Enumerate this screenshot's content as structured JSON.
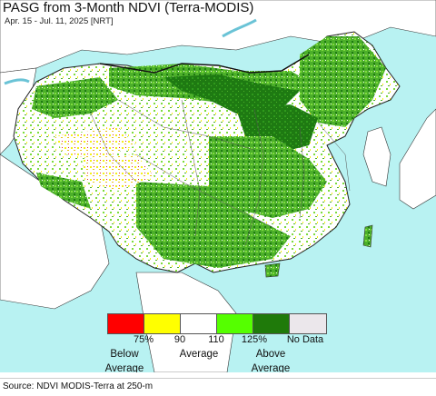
{
  "map": {
    "title": "PASG from 3-Month NDVI (Terra-MODIS)",
    "subtitle": "Apr. 15 - Jul. 11, 2025 [NRT]",
    "colors": {
      "water": "#b8f2f2",
      "land_outside": "#ffffff",
      "mostly_green": "#4caf2a",
      "dark_green": "#1e7a12",
      "light_green": "#7edc3c",
      "yellow": "#f3f018",
      "boundary": "#222222"
    }
  },
  "legend": {
    "classes": [
      {
        "label": "Below 75%",
        "color": "#ff0000"
      },
      {
        "label": "75-90%",
        "color": "#ffff00"
      },
      {
        "label": "90-110%",
        "color": "#ffffff"
      },
      {
        "label": "110-125%",
        "color": "#55ff00"
      },
      {
        "label": "Above 125%",
        "color": "#1f7a0a"
      },
      {
        "label": "No Data",
        "color": "#ebe7eb"
      }
    ],
    "ticks": [
      "75%",
      "90",
      "110",
      "125%",
      "No Data"
    ],
    "below_line1": "Below",
    "below_line2": "Average",
    "average": "Average",
    "above_line1": "Above",
    "above_line2": "Average"
  },
  "footer": {
    "source": "Source: NDVI MODIS-Terra at 250-m"
  }
}
